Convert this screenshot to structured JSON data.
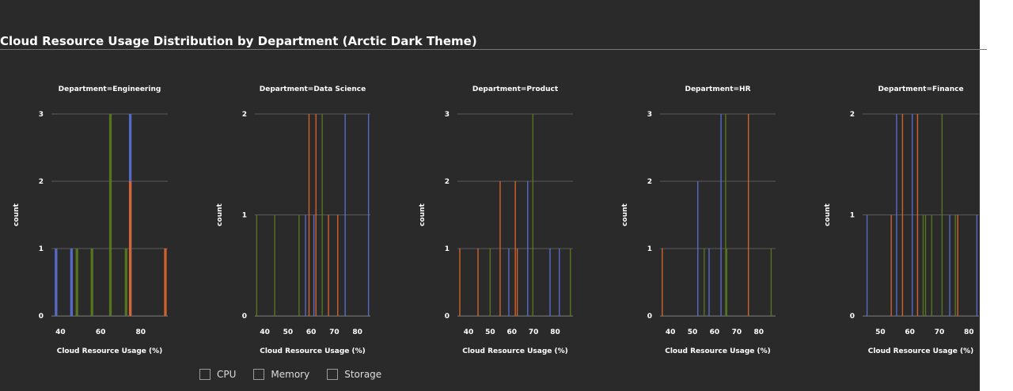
{
  "title": "Cloud Resource Usage Distribution by Department (Arctic Dark Theme)",
  "legend": {
    "items": [
      {
        "label": "CPU"
      },
      {
        "label": "Memory"
      },
      {
        "label": "Storage"
      }
    ]
  },
  "colors": {
    "CPU": "#5b6fd6",
    "Memory": "#e0662a",
    "Storage": "#5a7a1e",
    "background": "#2a2a2a",
    "grid": "#5a5a5a"
  },
  "chart_data": [
    {
      "type": "bar",
      "title": "Department=Engineering",
      "xlabel": "Cloud Resource Usage (%)",
      "ylabel": "count",
      "xlim": [
        35.5,
        93.5
      ],
      "ylim": [
        0,
        3
      ],
      "xticks": [
        40,
        60,
        80
      ],
      "yticks": [
        0,
        1,
        2,
        3
      ],
      "barwidth": 1.3,
      "bars": [
        {
          "x": 37.8,
          "count": 1,
          "series": "CPU"
        },
        {
          "x": 45.5,
          "count": 1,
          "series": "CPU"
        },
        {
          "x": 48.2,
          "count": 1,
          "series": "Storage"
        },
        {
          "x": 55.7,
          "count": 1,
          "series": "Storage"
        },
        {
          "x": 64.9,
          "count": 3,
          "series": "Storage"
        },
        {
          "x": 72.7,
          "count": 1,
          "series": "Storage"
        },
        {
          "x": 74.8,
          "count": 3,
          "series": "CPU"
        },
        {
          "x": 74.8,
          "count": 2,
          "series": "Memory"
        },
        {
          "x": 92.3,
          "count": 1,
          "series": "Memory"
        }
      ]
    },
    {
      "type": "bar",
      "title": "Department=Data Science",
      "xlabel": "Cloud Resource Usage (%)",
      "ylabel": "count",
      "xlim": [
        35.7,
        85.6
      ],
      "ylim": [
        0,
        2
      ],
      "xticks": [
        40,
        50,
        60,
        70,
        80
      ],
      "yticks": [
        0,
        1,
        2
      ],
      "barwidth": 0.35,
      "bars": [
        {
          "x": 36.5,
          "count": 1,
          "series": "Storage"
        },
        {
          "x": 44.3,
          "count": 1,
          "series": "Storage"
        },
        {
          "x": 54.8,
          "count": 1,
          "series": "Storage"
        },
        {
          "x": 57.6,
          "count": 1,
          "series": "CPU"
        },
        {
          "x": 59.1,
          "count": 2,
          "series": "Memory"
        },
        {
          "x": 61.2,
          "count": 1,
          "series": "CPU"
        },
        {
          "x": 62.1,
          "count": 2,
          "series": "Memory"
        },
        {
          "x": 64.8,
          "count": 2,
          "series": "Storage"
        },
        {
          "x": 67.5,
          "count": 1,
          "series": "Memory"
        },
        {
          "x": 71.5,
          "count": 1,
          "series": "Memory"
        },
        {
          "x": 74.7,
          "count": 2,
          "series": "CPU"
        },
        {
          "x": 84.8,
          "count": 2,
          "series": "CPU"
        }
      ]
    },
    {
      "type": "bar",
      "title": "Department=Product",
      "xlabel": "Cloud Resource Usage (%)",
      "ylabel": "count",
      "xlim": [
        34.9,
        88.2
      ],
      "ylim": [
        0,
        3
      ],
      "xticks": [
        40,
        50,
        60,
        70,
        80
      ],
      "yticks": [
        0,
        1,
        2,
        3
      ],
      "barwidth": 0.35,
      "bars": [
        {
          "x": 36.0,
          "count": 1,
          "series": "Memory"
        },
        {
          "x": 44.4,
          "count": 1,
          "series": "Memory"
        },
        {
          "x": 50.0,
          "count": 1,
          "series": "Storage"
        },
        {
          "x": 54.6,
          "count": 2,
          "series": "Memory"
        },
        {
          "x": 58.6,
          "count": 1,
          "series": "CPU"
        },
        {
          "x": 61.6,
          "count": 2,
          "series": "Memory"
        },
        {
          "x": 62.5,
          "count": 1,
          "series": "Memory"
        },
        {
          "x": 67.3,
          "count": 2,
          "series": "CPU"
        },
        {
          "x": 69.7,
          "count": 3,
          "series": "Storage"
        },
        {
          "x": 77.6,
          "count": 1,
          "series": "CPU"
        },
        {
          "x": 81.9,
          "count": 1,
          "series": "CPU"
        },
        {
          "x": 87.0,
          "count": 1,
          "series": "Storage"
        }
      ]
    },
    {
      "type": "bar",
      "title": "Department=HR",
      "xlabel": "Cloud Resource Usage (%)",
      "ylabel": "count",
      "xlim": [
        35.3,
        87.6
      ],
      "ylim": [
        0,
        3
      ],
      "xticks": [
        40,
        50,
        60,
        70,
        80
      ],
      "yticks": [
        0,
        1,
        2,
        3
      ],
      "barwidth": 0.35,
      "bars": [
        {
          "x": 36.3,
          "count": 1,
          "series": "Memory"
        },
        {
          "x": 52.4,
          "count": 2,
          "series": "CPU"
        },
        {
          "x": 55.3,
          "count": 1,
          "series": "Storage"
        },
        {
          "x": 57.5,
          "count": 1,
          "series": "CPU"
        },
        {
          "x": 62.9,
          "count": 3,
          "series": "CPU"
        },
        {
          "x": 65.0,
          "count": 3,
          "series": "Storage"
        },
        {
          "x": 65.5,
          "count": 1,
          "series": "Storage"
        },
        {
          "x": 75.3,
          "count": 3,
          "series": "Memory"
        },
        {
          "x": 85.6,
          "count": 1,
          "series": "Storage"
        }
      ]
    },
    {
      "type": "bar",
      "title": "Department=Finance",
      "xlabel": "Cloud Resource Usage (%)",
      "ylabel": "count",
      "xlim": [
        44.0,
        83.4
      ],
      "ylim": [
        0,
        2
      ],
      "xticks": [
        50,
        60,
        70,
        80
      ],
      "yticks": [
        0,
        1,
        2
      ],
      "barwidth": 0.25,
      "bars": [
        {
          "x": 45.5,
          "count": 1,
          "series": "CPU"
        },
        {
          "x": 53.7,
          "count": 1,
          "series": "Memory"
        },
        {
          "x": 55.5,
          "count": 2,
          "series": "CPU"
        },
        {
          "x": 57.5,
          "count": 2,
          "series": "Memory"
        },
        {
          "x": 60.8,
          "count": 2,
          "series": "CPU"
        },
        {
          "x": 62.6,
          "count": 2,
          "series": "Memory"
        },
        {
          "x": 64.5,
          "count": 1,
          "series": "Storage"
        },
        {
          "x": 65.3,
          "count": 1,
          "series": "Storage"
        },
        {
          "x": 67.4,
          "count": 1,
          "series": "Storage"
        },
        {
          "x": 70.9,
          "count": 2,
          "series": "Storage"
        },
        {
          "x": 73.5,
          "count": 1,
          "series": "CPU"
        },
        {
          "x": 75.4,
          "count": 1,
          "series": "Storage"
        },
        {
          "x": 76.2,
          "count": 1,
          "series": "Memory"
        },
        {
          "x": 82.7,
          "count": 1,
          "series": "CPU"
        }
      ]
    }
  ]
}
